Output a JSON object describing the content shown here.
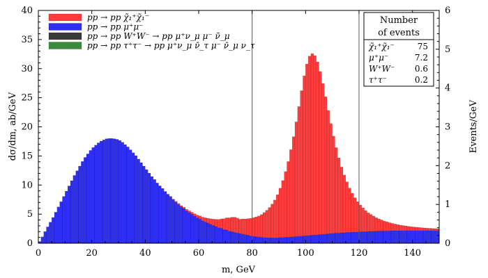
{
  "chart_data": {
    "type": "bar",
    "stacked": true,
    "xlabel": "m, GeV",
    "ylabel_left": "dσ/dm, ab/GeV",
    "ylabel_right": "Events/GeV",
    "xlim": [
      0,
      150
    ],
    "ylim_left": [
      0,
      40
    ],
    "ylim_right": [
      0,
      6
    ],
    "x_ticks": [
      0,
      20,
      40,
      60,
      80,
      100,
      120,
      140
    ],
    "y_ticks_left": [
      0,
      5,
      10,
      15,
      20,
      25,
      30,
      35,
      40
    ],
    "y_ticks_right": [
      0,
      1,
      2,
      3,
      4,
      5,
      6
    ],
    "bin_width": 1,
    "vertical_lines": [
      80,
      120
    ],
    "legend_placement": "top-left",
    "colors": {
      "chi": "#ff3b3b",
      "mumu": "#2e2ef5",
      "ww": "#3a3a3a",
      "tautau": "#3c8a3c"
    },
    "series": [
      {
        "key": "tautau",
        "name": "pp → pp τ⁺τ⁻ → pp μ⁺ν_μ ν̄_τ μ⁻ ν̄_μ ν_τ",
        "events": "0.2",
        "values": [
          0.002,
          0.005,
          0.01,
          0.015,
          0.02,
          0.025,
          0.03,
          0.035,
          0.04,
          0.045,
          0.05,
          0.05,
          0.05,
          0.05,
          0.05,
          0.05,
          0.05,
          0.05,
          0.05,
          0.05,
          0.05,
          0.05,
          0.05,
          0.05,
          0.05,
          0.05,
          0.05,
          0.05,
          0.05,
          0.05,
          0.05,
          0.05,
          0.05,
          0.05,
          0.05,
          0.05,
          0.05,
          0.05,
          0.05,
          0.05,
          0.05,
          0.05,
          0.05,
          0.05,
          0.05,
          0.05,
          0.05,
          0.05,
          0.05,
          0.05,
          0.045,
          0.045,
          0.045,
          0.045,
          0.045,
          0.04,
          0.04,
          0.04,
          0.04,
          0.04,
          0.035,
          0.035,
          0.035,
          0.035,
          0.035,
          0.03,
          0.03,
          0.03,
          0.03,
          0.03,
          0.03,
          0.03,
          0.03,
          0.03,
          0.03,
          0.03,
          0.03,
          0.03,
          0.03,
          0.03,
          0.03,
          0.03,
          0.03,
          0.03,
          0.03,
          0.03,
          0.03,
          0.03,
          0.03,
          0.03,
          0.03,
          0.03,
          0.03,
          0.03,
          0.03,
          0.03,
          0.03,
          0.03,
          0.03,
          0.03,
          0.03,
          0.03,
          0.03,
          0.03,
          0.03,
          0.03,
          0.03,
          0.03,
          0.03,
          0.03,
          0.03,
          0.03,
          0.03,
          0.03,
          0.03,
          0.03,
          0.03,
          0.03,
          0.03,
          0.03,
          0.03,
          0.03,
          0.03,
          0.03,
          0.03,
          0.03,
          0.03,
          0.03,
          0.03,
          0.03,
          0.03,
          0.03,
          0.03,
          0.03,
          0.03,
          0.03,
          0.03,
          0.03,
          0.03,
          0.03,
          0.03,
          0.03,
          0.03,
          0.03,
          0.03,
          0.03,
          0.03,
          0.03,
          0.03,
          0.03
        ]
      },
      {
        "key": "ww",
        "name": "pp → pp W⁺W⁻ → pp μ⁺ν_μ μ⁻ ν̄_μ",
        "events": "0.6",
        "values": [
          0.0,
          0.0,
          0.0,
          0.0,
          0.0,
          0.0,
          0.0,
          0.0,
          0.0,
          0.0,
          0.0,
          0.0,
          0.0,
          0.0,
          0.0,
          0.0,
          0.0,
          0.0,
          0.0,
          0.0,
          0.0,
          0.0,
          0.0,
          0.0,
          0.0,
          0.0,
          0.0,
          0.0,
          0.0,
          0.0,
          0.0,
          0.0,
          0.0,
          0.0,
          0.0,
          0.0,
          0.0,
          0.0,
          0.0,
          0.0,
          0.01,
          0.01,
          0.01,
          0.01,
          0.01,
          0.015,
          0.015,
          0.015,
          0.015,
          0.015,
          0.02,
          0.02,
          0.02,
          0.02,
          0.02,
          0.025,
          0.025,
          0.025,
          0.025,
          0.025,
          0.03,
          0.03,
          0.03,
          0.03,
          0.03,
          0.035,
          0.035,
          0.035,
          0.035,
          0.035,
          0.04,
          0.04,
          0.04,
          0.04,
          0.04,
          0.045,
          0.045,
          0.045,
          0.045,
          0.045,
          0.05,
          0.05,
          0.05,
          0.05,
          0.05,
          0.05,
          0.05,
          0.05,
          0.05,
          0.05,
          0.05,
          0.05,
          0.05,
          0.05,
          0.05,
          0.05,
          0.05,
          0.05,
          0.05,
          0.05,
          0.05,
          0.05,
          0.05,
          0.05,
          0.05,
          0.05,
          0.05,
          0.05,
          0.05,
          0.05,
          0.05,
          0.05,
          0.05,
          0.05,
          0.05,
          0.05,
          0.05,
          0.05,
          0.05,
          0.05,
          0.05,
          0.05,
          0.05,
          0.05,
          0.05,
          0.05,
          0.05,
          0.05,
          0.05,
          0.05,
          0.05,
          0.05,
          0.05,
          0.05,
          0.05,
          0.05,
          0.05,
          0.05,
          0.05,
          0.05,
          0.05,
          0.05,
          0.05,
          0.05,
          0.05,
          0.05,
          0.05,
          0.05,
          0.05,
          0.05
        ]
      },
      {
        "key": "mumu",
        "name": "pp → pp μ⁺μ⁻",
        "events": "7.2",
        "values": [
          0.3,
          1.1,
          2.0,
          2.8,
          3.6,
          4.4,
          5.3,
          6.2,
          7.1,
          8.0,
          8.9,
          9.8,
          10.7,
          11.6,
          12.4,
          13.2,
          14.0,
          14.7,
          15.3,
          15.9,
          16.4,
          16.8,
          17.2,
          17.5,
          17.7,
          17.9,
          17.95,
          17.95,
          17.9,
          17.8,
          17.6,
          17.3,
          16.9,
          16.5,
          16.0,
          15.5,
          15.0,
          14.4,
          13.8,
          13.2,
          12.6,
          12.0,
          11.4,
          10.9,
          10.3,
          9.8,
          9.3,
          8.8,
          8.3,
          7.9,
          7.4,
          7.0,
          6.6,
          6.2,
          5.9,
          5.5,
          5.2,
          4.9,
          4.6,
          4.3,
          4.1,
          3.8,
          3.6,
          3.4,
          3.2,
          3.0,
          2.8,
          2.6,
          2.5,
          2.3,
          2.2,
          2.0,
          1.9,
          1.8,
          1.7,
          1.6,
          1.5,
          1.4,
          1.3,
          1.2,
          1.1,
          1.05,
          1.0,
          0.95,
          0.9,
          0.88,
          0.86,
          0.85,
          0.85,
          0.86,
          0.88,
          0.9,
          0.93,
          0.96,
          1.0,
          1.03,
          1.07,
          1.1,
          1.14,
          1.18,
          1.22,
          1.26,
          1.3,
          1.34,
          1.38,
          1.42,
          1.46,
          1.5,
          1.54,
          1.58,
          1.62,
          1.65,
          1.68,
          1.71,
          1.74,
          1.77,
          1.8,
          1.82,
          1.84,
          1.86,
          1.88,
          1.9,
          1.92,
          1.94,
          1.96,
          1.98,
          2.0,
          2.01,
          2.02,
          2.03,
          2.04,
          2.05,
          2.06,
          2.07,
          2.08,
          2.08,
          2.09,
          2.09,
          2.1,
          2.1,
          2.1,
          2.1,
          2.1,
          2.1,
          2.1,
          2.1,
          2.1,
          2.1,
          2.1,
          2.1
        ]
      },
      {
        "key": "chi",
        "name": "pp → pp χ̃₁⁺χ̃₁⁻",
        "events": "75",
        "values": [
          0.0,
          0.0,
          0.0,
          0.0,
          0.0,
          0.0,
          0.0,
          0.0,
          0.0,
          0.0,
          0.0,
          0.0,
          0.0,
          0.0,
          0.0,
          0.0,
          0.0,
          0.0,
          0.0,
          0.0,
          0.0,
          0.0,
          0.0,
          0.0,
          0.0,
          0.0,
          0.0,
          0.0,
          0.0,
          0.0,
          0.0,
          0.0,
          0.0,
          0.0,
          0.0,
          0.0,
          0.0,
          0.0,
          0.0,
          0.0,
          0.0,
          0.0,
          0.0,
          0.0,
          0.0,
          0.0,
          0.05,
          0.05,
          0.08,
          0.1,
          0.12,
          0.14,
          0.17,
          0.2,
          0.23,
          0.27,
          0.31,
          0.36,
          0.41,
          0.47,
          0.54,
          0.62,
          0.71,
          0.82,
          0.94,
          1.08,
          1.24,
          1.42,
          1.62,
          1.85,
          2.1,
          2.3,
          2.5,
          2.6,
          2.55,
          2.45,
          2.6,
          2.7,
          2.85,
          3.0,
          3.2,
          3.4,
          3.6,
          3.9,
          4.3,
          4.7,
          5.2,
          5.8,
          6.5,
          7.4,
          8.5,
          9.8,
          11.3,
          13.0,
          15.0,
          17.2,
          19.7,
          22.3,
          25.0,
          27.5,
          29.5,
          30.8,
          31.2,
          30.8,
          29.7,
          28.0,
          25.9,
          23.6,
          21.2,
          18.9,
          16.7,
          14.7,
          12.9,
          11.3,
          9.9,
          8.7,
          7.6,
          6.7,
          5.9,
          5.2,
          4.6,
          4.1,
          3.6,
          3.2,
          2.9,
          2.6,
          2.3,
          2.1,
          1.9,
          1.7,
          1.55,
          1.4,
          1.27,
          1.15,
          1.05,
          0.95,
          0.87,
          0.8,
          0.73,
          0.67,
          0.62,
          0.57,
          0.53,
          0.49,
          0.45,
          0.42,
          0.39,
          0.36,
          0.34,
          0.32,
          0.3,
          0.28
        ]
      }
    ]
  },
  "events_table": {
    "title_line1": "Number",
    "title_line2": "of events",
    "rows": [
      {
        "label": "χ̃₁⁺χ̃₁⁻",
        "value": "75"
      },
      {
        "label": "μ⁺μ⁻",
        "value": "7.2"
      },
      {
        "label": "W⁺W⁻",
        "value": "0.6"
      },
      {
        "label": "τ⁺τ⁻",
        "value": "0.2"
      }
    ]
  }
}
